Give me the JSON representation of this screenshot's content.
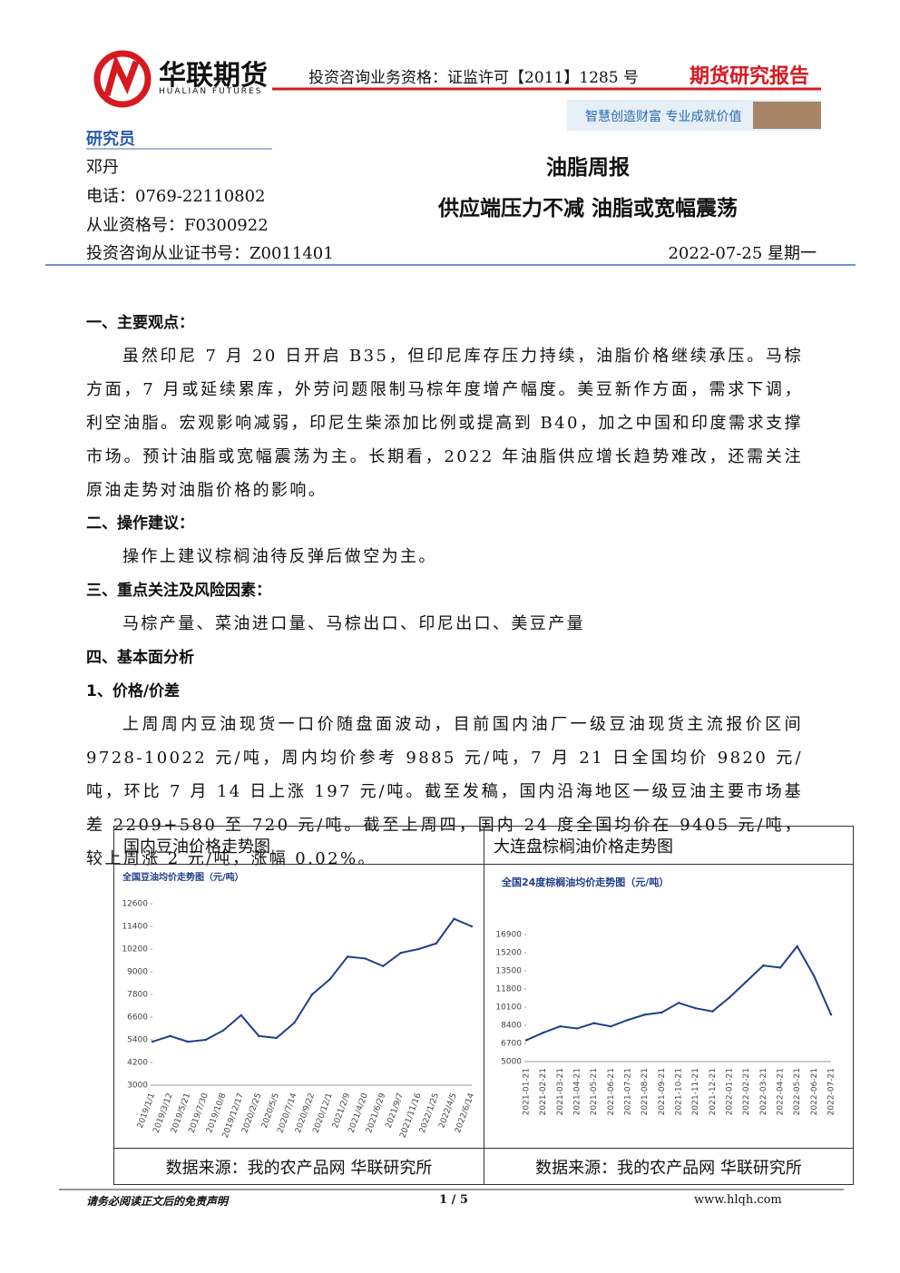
{
  "header": {
    "brand": "华联期货",
    "brand_en": "HUALIAN FUTURES",
    "qualification": "投资咨询业务资格：证监许可【2011】1285 号",
    "report_type": "期货研究报告",
    "slogan": "智慧创造财富  专业成就价值"
  },
  "researcher": {
    "label": "研究员",
    "name": "邓丹",
    "phone": "电话：0769-22110802",
    "qualification_no": "从业资格号：F0300922",
    "consult_no": "投资咨询从业证书号：Z0011401"
  },
  "title": "油脂周报",
  "subtitle": "供应端压力不减 油脂或宽幅震荡",
  "date": "2022-07-25  星期一",
  "body": [
    {
      "kind": "h",
      "text": "一、主要观点："
    },
    {
      "kind": "p",
      "text": "虽然印尼 7 月 20 日开启 B35，但印尼库存压力持续，油脂价格继续承压。马棕方面，7 月或延续累库，外劳问题限制马棕年度增产幅度。美豆新作方面，需求下调，利空油脂。宏观影响减弱，印尼生柴添加比例或提高到 B40，加之中国和印度需求支撑市场。预计油脂或宽幅震荡为主。长期看，2022 年油脂供应增长趋势难改，还需关注原油走势对油脂价格的影响。"
    },
    {
      "kind": "h",
      "text": "二、操作建议："
    },
    {
      "kind": "p",
      "text": "操作上建议棕榈油待反弹后做空为主。"
    },
    {
      "kind": "h",
      "text": "三、重点关注及风险因素："
    },
    {
      "kind": "p",
      "text": "马棕产量、菜油进口量、马棕出口、印尼出口、美豆产量"
    },
    {
      "kind": "h",
      "text": "四、基本面分析"
    },
    {
      "kind": "h",
      "text": "1、价格/价差"
    },
    {
      "kind": "p",
      "text": "上周周内豆油现货一口价随盘面波动，目前国内油厂一级豆油现货主流报价区间 9728-10022 元/吨，周内均价参考 9885 元/吨，7 月 21 日全国均价 9820 元/吨，环比 7 月 14 日上涨 197 元/吨。截至发稿，国内沿海地区一级豆油主要市场基差 2209+580 至 720 元/吨。截至上周四，国内 24 度全国均价在 9405 元/吨，较上周涨 2 元/吨，涨幅 0.02%。"
    }
  ],
  "figure_table": {
    "headers": [
      "国内豆油价格走势图",
      "大连盘棕榈油价格走势图"
    ],
    "sources": [
      "数据来源：我的农产品网  华联研究所",
      "数据来源：我的农产品网  华联研究所"
    ]
  },
  "chart_data": [
    {
      "type": "line",
      "title": "全国豆油均价走势图（元/吨）",
      "color": "#1f3f8a",
      "categories": [
        "2019/1/1",
        "2019/3/12",
        "2019/5/21",
        "2019/7/30",
        "2019/10/8",
        "2019/12/17",
        "2020/2/25",
        "2020/5/5",
        "2020/7/14",
        "2020/9/22",
        "2020/12/1",
        "2021/2/9",
        "2021/4/20",
        "2021/6/29",
        "2021/9/7",
        "2021/11/16",
        "2022/1/25",
        "2022/4/5",
        "2022/6/14"
      ],
      "values": [
        5300,
        5600,
        5300,
        5400,
        5900,
        6700,
        5600,
        5500,
        6300,
        7800,
        8600,
        9800,
        9700,
        9300,
        10000,
        10200,
        10500,
        11800,
        11400
      ],
      "ylim": [
        3000,
        12600
      ],
      "yticks": [
        3000,
        4200,
        5400,
        6600,
        7800,
        9000,
        10200,
        11400,
        12600
      ]
    },
    {
      "type": "line",
      "title": "全国24度棕榈油均价走势图（元/吨）",
      "color": "#1f3f8a",
      "categories": [
        "2021-01-21",
        "2021-02-21",
        "2021-03-21",
        "2021-04-21",
        "2021-05-21",
        "2021-06-21",
        "2021-07-21",
        "2021-08-21",
        "2021-09-21",
        "2021-10-21",
        "2021-11-21",
        "2021-12-21",
        "2022-01-21",
        "2022-02-21",
        "2022-03-21",
        "2022-04-21",
        "2022-05-21",
        "2022-06-21",
        "2022-07-21"
      ],
      "values": [
        7000,
        7700,
        8300,
        8100,
        8600,
        8300,
        8900,
        9400,
        9600,
        10500,
        10000,
        9700,
        11000,
        12500,
        14000,
        13800,
        15800,
        13000,
        9400
      ],
      "ylim": [
        5000,
        16900
      ],
      "yticks": [
        5000,
        6700,
        8400,
        10100,
        11800,
        13500,
        15200,
        16900
      ]
    }
  ],
  "footer": {
    "disclaimer": "请务必阅读正文后的免责声明",
    "page": "1 / 5",
    "site": "www.hlqh.com"
  }
}
